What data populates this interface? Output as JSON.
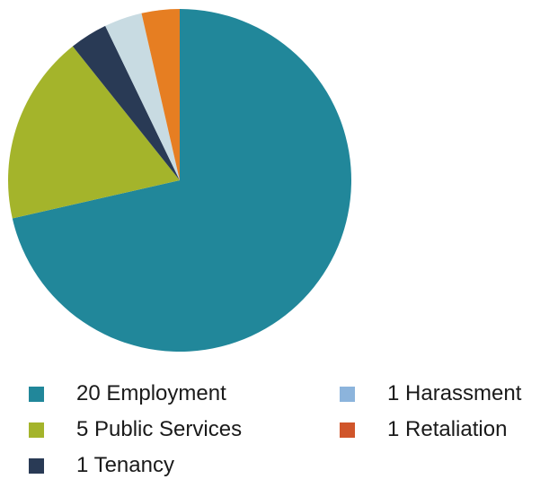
{
  "chart_data": {
    "type": "pie",
    "slices": [
      {
        "label": "20 Employment",
        "value": 20,
        "color": "#21879a"
      },
      {
        "label": "5 Public Services",
        "value": 5,
        "color": "#a4b42b"
      },
      {
        "label": "1 Tenancy",
        "value": 1,
        "color": "#293a55"
      },
      {
        "label": "1 Harassment",
        "value": 1,
        "color": "#c8dbe2"
      },
      {
        "label": "1 Retaliation",
        "value": 1,
        "color": "#e67e22"
      }
    ],
    "legend": {
      "placement": "bottom",
      "entries": [
        {
          "label": "20 Employment",
          "color": "#21879a"
        },
        {
          "label": "5 Public Services",
          "color": "#a4b42b"
        },
        {
          "label": "1 Tenancy",
          "color": "#293a55"
        },
        {
          "label": "1 Harassment",
          "color": "#8cb4dc"
        },
        {
          "label": "1 Retaliation",
          "color": "#d0552a"
        }
      ]
    }
  }
}
